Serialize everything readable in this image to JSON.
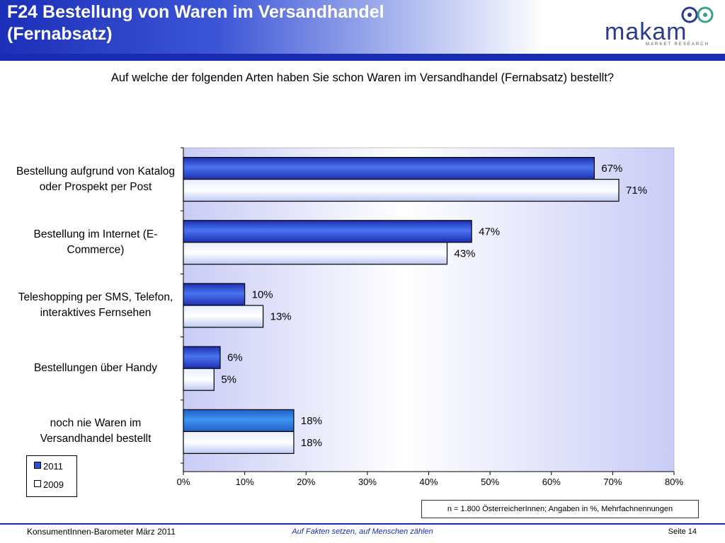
{
  "header": {
    "title_line1": "F24 Bestellung von Waren im Versandhandel",
    "title_line2": "(Fernabsatz)"
  },
  "logo": {
    "word": "makam",
    "subtitle": "MARKET RESEARCH"
  },
  "question": "Auf welche der folgenden Arten haben Sie schon Waren im Versandhandel (Fernabsatz) bestellt?",
  "colors": {
    "series_2011": "#2f4fd8",
    "series_2011_last": "#2d7fe0",
    "series_2009": "#ffffff",
    "accent": "#1a2bb0"
  },
  "chart_data": {
    "type": "bar",
    "orientation": "horizontal",
    "categories": [
      "Bestellung aufgrund von Katalog oder Prospekt per Post",
      "Bestellung im Internet (E-Commerce)",
      "Teleshopping per SMS, Telefon, interaktives Fernsehen",
      "Bestellungen über Handy",
      "noch nie Waren im Versandhandel bestellt"
    ],
    "series": [
      {
        "name": "2011",
        "values": [
          67,
          47,
          10,
          6,
          18
        ],
        "labels": [
          "67%",
          "47%",
          "10%",
          "6%",
          "18%"
        ]
      },
      {
        "name": "2009",
        "values": [
          71,
          43,
          13,
          5,
          18
        ],
        "labels": [
          "71%",
          "43%",
          "13%",
          "5%",
          "18%"
        ]
      }
    ],
    "xlim": [
      0,
      80
    ],
    "xticks": [
      "0%",
      "10%",
      "20%",
      "30%",
      "40%",
      "50%",
      "60%",
      "70%",
      "80%"
    ],
    "legend_position": "bottom-left"
  },
  "footnote": "n = 1.800 ÖsterreicherInnen; Angaben in %, Mehrfachnennungen",
  "footer": {
    "left": "KonsumentInnen-Barometer März  2011",
    "middle": "Auf Fakten setzen, auf Menschen zählen",
    "right": "Seite 14"
  }
}
